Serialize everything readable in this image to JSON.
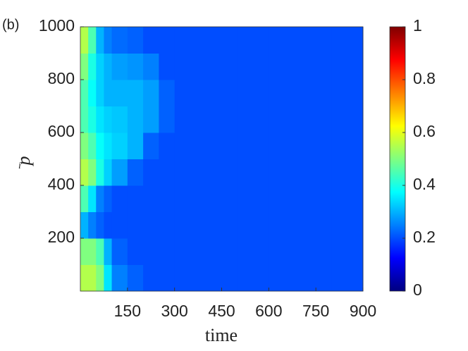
{
  "chart_data": {
    "type": "heatmap",
    "panel_label": "(b)",
    "xlabel": "time",
    "ylabel": "p",
    "ylabel_sub": "i",
    "colormap": "jet",
    "x_edges": [
      0,
      25,
      50,
      75,
      100,
      150,
      200,
      250,
      300,
      400,
      500,
      600,
      700,
      800,
      900
    ],
    "y_edges": [
      0,
      100,
      200,
      300,
      400,
      500,
      600,
      700,
      800,
      900,
      1000
    ],
    "values": [
      [
        0.55,
        0.55,
        0.5,
        0.35,
        0.25,
        0.22,
        0.2,
        0.2,
        0.2,
        0.2,
        0.2,
        0.2,
        0.2,
        0.2
      ],
      [
        0.5,
        0.5,
        0.45,
        0.3,
        0.22,
        0.2,
        0.2,
        0.2,
        0.2,
        0.2,
        0.2,
        0.2,
        0.2,
        0.2
      ],
      [
        0.3,
        0.25,
        0.22,
        0.2,
        0.2,
        0.2,
        0.2,
        0.2,
        0.2,
        0.2,
        0.2,
        0.2,
        0.2,
        0.2
      ],
      [
        0.45,
        0.35,
        0.25,
        0.22,
        0.2,
        0.2,
        0.2,
        0.2,
        0.2,
        0.2,
        0.2,
        0.2,
        0.2,
        0.2
      ],
      [
        0.55,
        0.5,
        0.4,
        0.33,
        0.28,
        0.22,
        0.2,
        0.2,
        0.2,
        0.2,
        0.2,
        0.2,
        0.2,
        0.2
      ],
      [
        0.5,
        0.45,
        0.38,
        0.35,
        0.33,
        0.3,
        0.22,
        0.2,
        0.2,
        0.2,
        0.2,
        0.2,
        0.2,
        0.2
      ],
      [
        0.45,
        0.4,
        0.35,
        0.33,
        0.32,
        0.3,
        0.28,
        0.22,
        0.2,
        0.2,
        0.2,
        0.2,
        0.2,
        0.2
      ],
      [
        0.45,
        0.38,
        0.33,
        0.3,
        0.3,
        0.3,
        0.28,
        0.22,
        0.2,
        0.2,
        0.2,
        0.2,
        0.2,
        0.2
      ],
      [
        0.5,
        0.4,
        0.33,
        0.3,
        0.28,
        0.27,
        0.25,
        0.2,
        0.2,
        0.2,
        0.2,
        0.2,
        0.2,
        0.2
      ],
      [
        0.55,
        0.45,
        0.3,
        0.25,
        0.23,
        0.22,
        0.2,
        0.2,
        0.2,
        0.2,
        0.2,
        0.2,
        0.2,
        0.2
      ]
    ],
    "xlim": [
      0,
      900
    ],
    "xticks": [
      150,
      300,
      450,
      600,
      750,
      900
    ],
    "ylim": [
      0,
      1000
    ],
    "yticks": [
      200,
      400,
      600,
      800,
      1000
    ],
    "clim": [
      0,
      1
    ],
    "cticks": [
      0,
      0.2,
      0.4,
      0.6,
      0.8,
      1
    ]
  }
}
